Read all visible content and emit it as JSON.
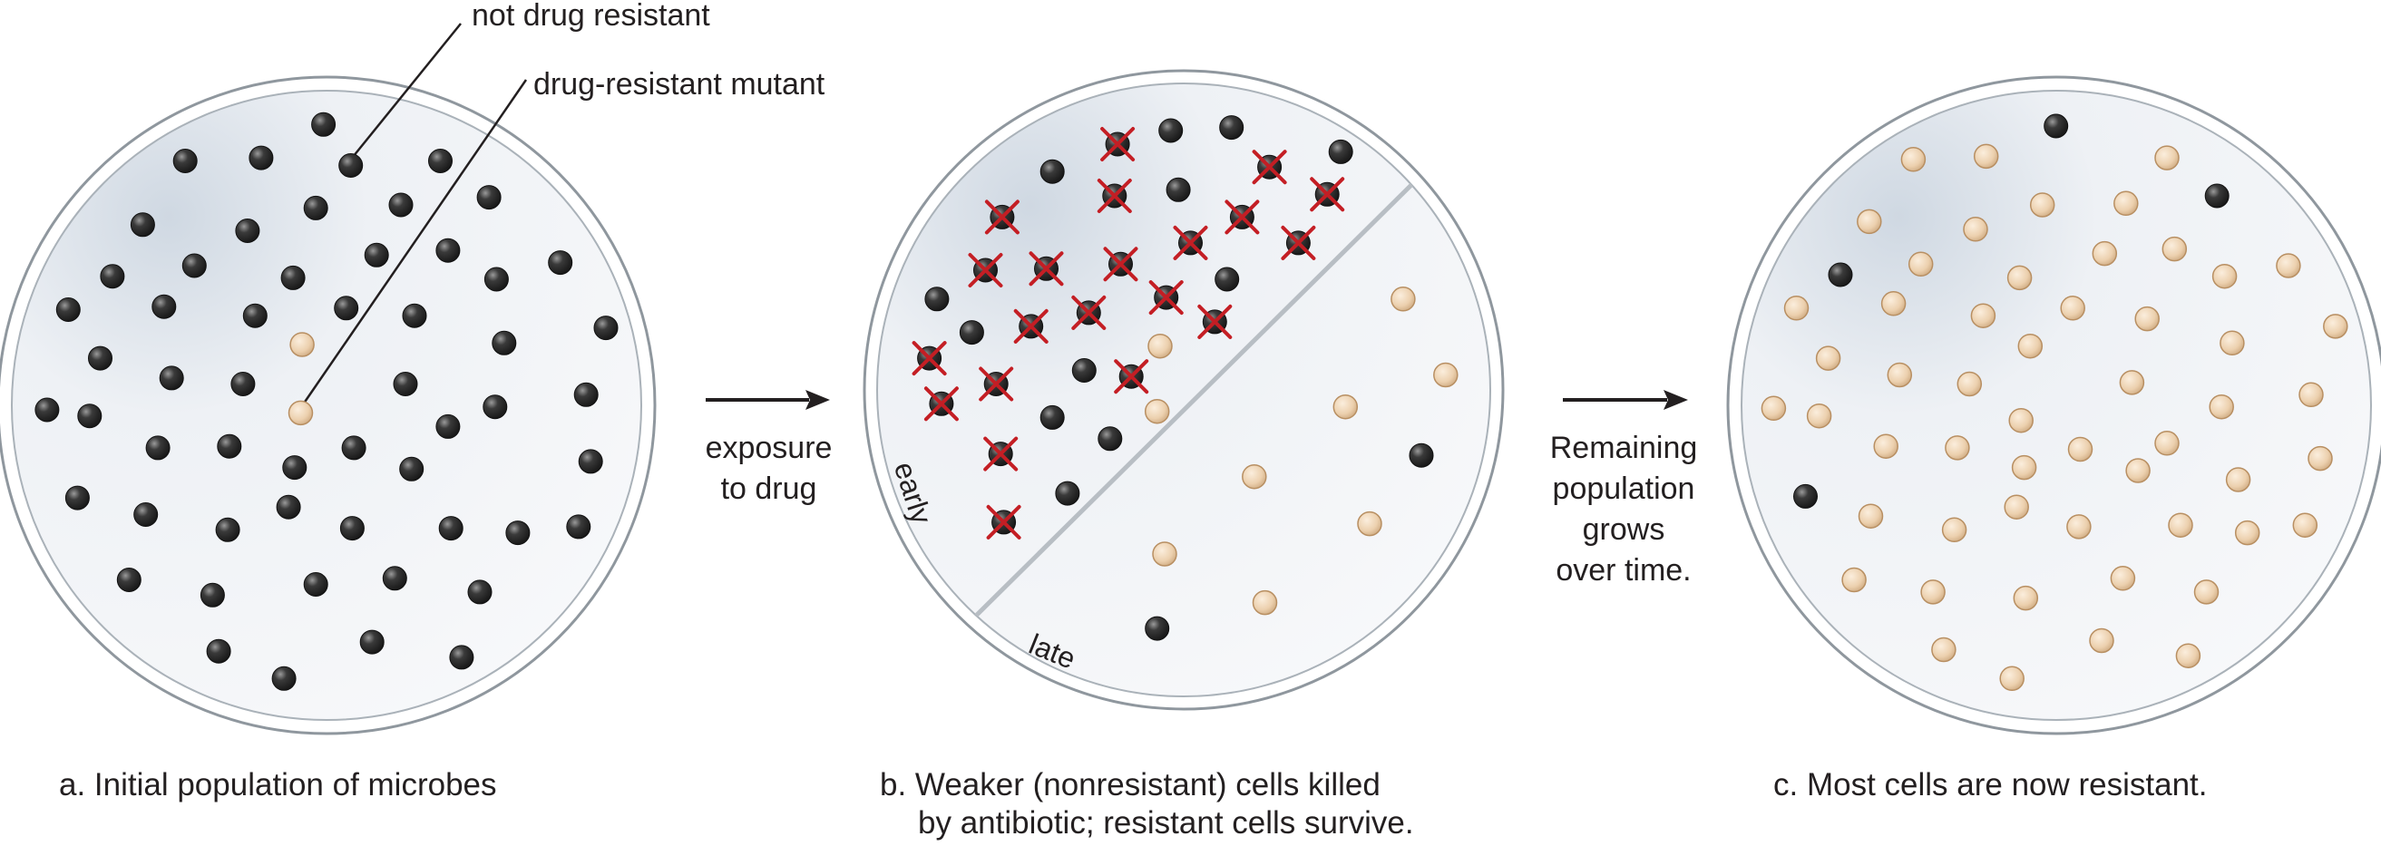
{
  "callouts": {
    "not_resistant": "not drug resistant",
    "resistant_mutant": "drug-resistant mutant"
  },
  "arrows": {
    "first": [
      "exposure",
      "to drug"
    ],
    "second": [
      "Remaining",
      "population",
      "grows",
      "over time."
    ]
  },
  "dish_b": {
    "early_label": "early",
    "late_label": "late"
  },
  "captions": {
    "a": "a. Initial population of microbes",
    "b_line1": "b. Weaker (nonresistant) cells killed",
    "b_line2": "by antibiotic; resistant cells survive.",
    "c": "c. Most cells are now resistant."
  },
  "colors": {
    "dark_cell": "#2b2b2b",
    "resistant_cell": "#e9c8a2",
    "kill_mark": "#c41e24",
    "dish_fill": "#f2f4f7",
    "dish_rim": "#9aa3ab"
  }
}
